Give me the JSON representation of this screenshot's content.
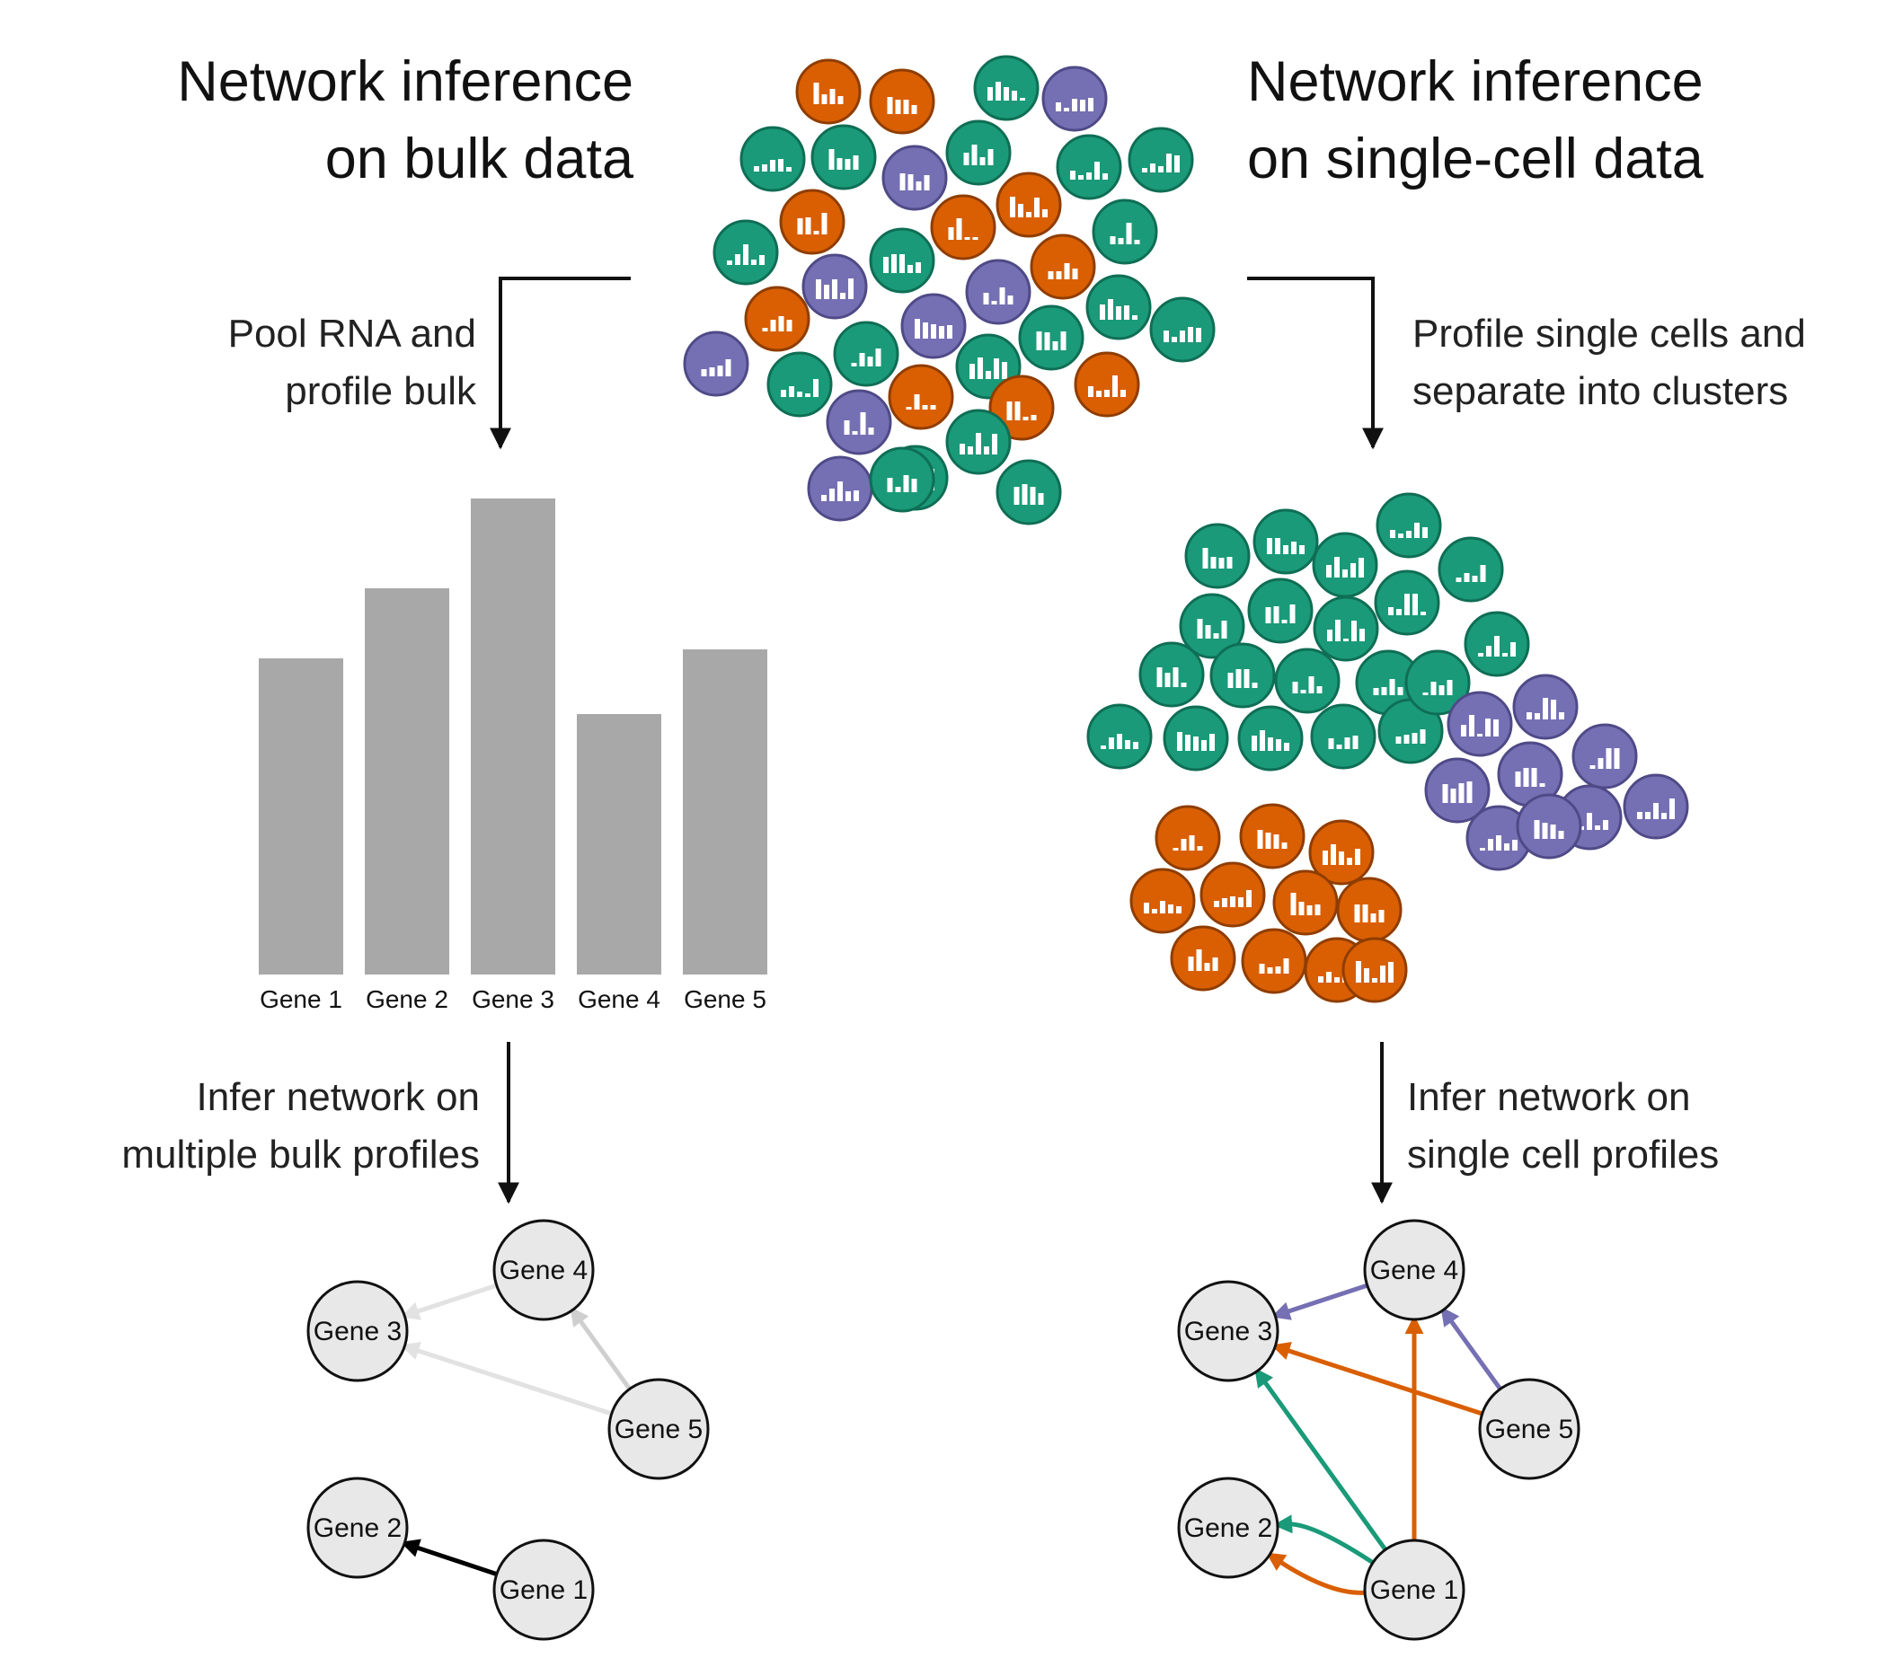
{
  "titles": {
    "bulk": [
      "Network inference",
      "on bulk data"
    ],
    "single_cell": [
      "Network inference",
      "on single-cell data"
    ]
  },
  "steps": {
    "pool": [
      "Pool RNA and",
      "profile bulk"
    ],
    "profile_cells": [
      "Profile single cells and",
      "separate into clusters"
    ],
    "infer_bulk": [
      "Infer network on",
      "multiple bulk profiles"
    ],
    "infer_single": [
      "Infer network on",
      "single cell profiles"
    ]
  },
  "colors": {
    "green": "#1a9a78",
    "orange": "#d95f02",
    "purple": "#7570b3",
    "bar_gray": "#a8a8a8",
    "node_fill": "#e8e8e8",
    "edge_light": "#e2e2e2",
    "edge_mid": "#cfcfcf",
    "edge_dark": "#000000"
  },
  "chart_data": {
    "type": "bar",
    "categories": [
      "Gene 1",
      "Gene 2",
      "Gene 3",
      "Gene 4",
      "Gene 5"
    ],
    "values": [
      352,
      430,
      530,
      290,
      362
    ]
  },
  "bulk_network": {
    "nodes": [
      "Gene 4",
      "Gene 3",
      "Gene 5",
      "Gene 2",
      "Gene 1"
    ],
    "edges": [
      {
        "from": "Gene 4",
        "to": "Gene 3",
        "shade": "light"
      },
      {
        "from": "Gene 5",
        "to": "Gene 3",
        "shade": "light"
      },
      {
        "from": "Gene 5",
        "to": "Gene 4",
        "shade": "mid"
      },
      {
        "from": "Gene 1",
        "to": "Gene 2",
        "shade": "dark"
      }
    ]
  },
  "sc_network": {
    "nodes": [
      "Gene 4",
      "Gene 3",
      "Gene 5",
      "Gene 2",
      "Gene 1"
    ],
    "edges": [
      {
        "from": "Gene 4",
        "to": "Gene 3",
        "cluster": "purple"
      },
      {
        "from": "Gene 5",
        "to": "Gene 4",
        "cluster": "purple"
      },
      {
        "from": "Gene 5",
        "to": "Gene 3",
        "cluster": "orange"
      },
      {
        "from": "Gene 1",
        "to": "Gene 4",
        "cluster": "orange"
      },
      {
        "from": "Gene 1",
        "to": "Gene 3",
        "cluster": "green"
      },
      {
        "from": "Gene 1",
        "to": "Gene 2",
        "cluster": "green"
      },
      {
        "from": "Gene 1",
        "to": "Gene 2",
        "cluster": "orange"
      }
    ]
  },
  "cells": {
    "mixed_count": 37,
    "green_cluster_count": 20,
    "purple_cluster_count": 9,
    "orange_cluster_count": 11
  }
}
